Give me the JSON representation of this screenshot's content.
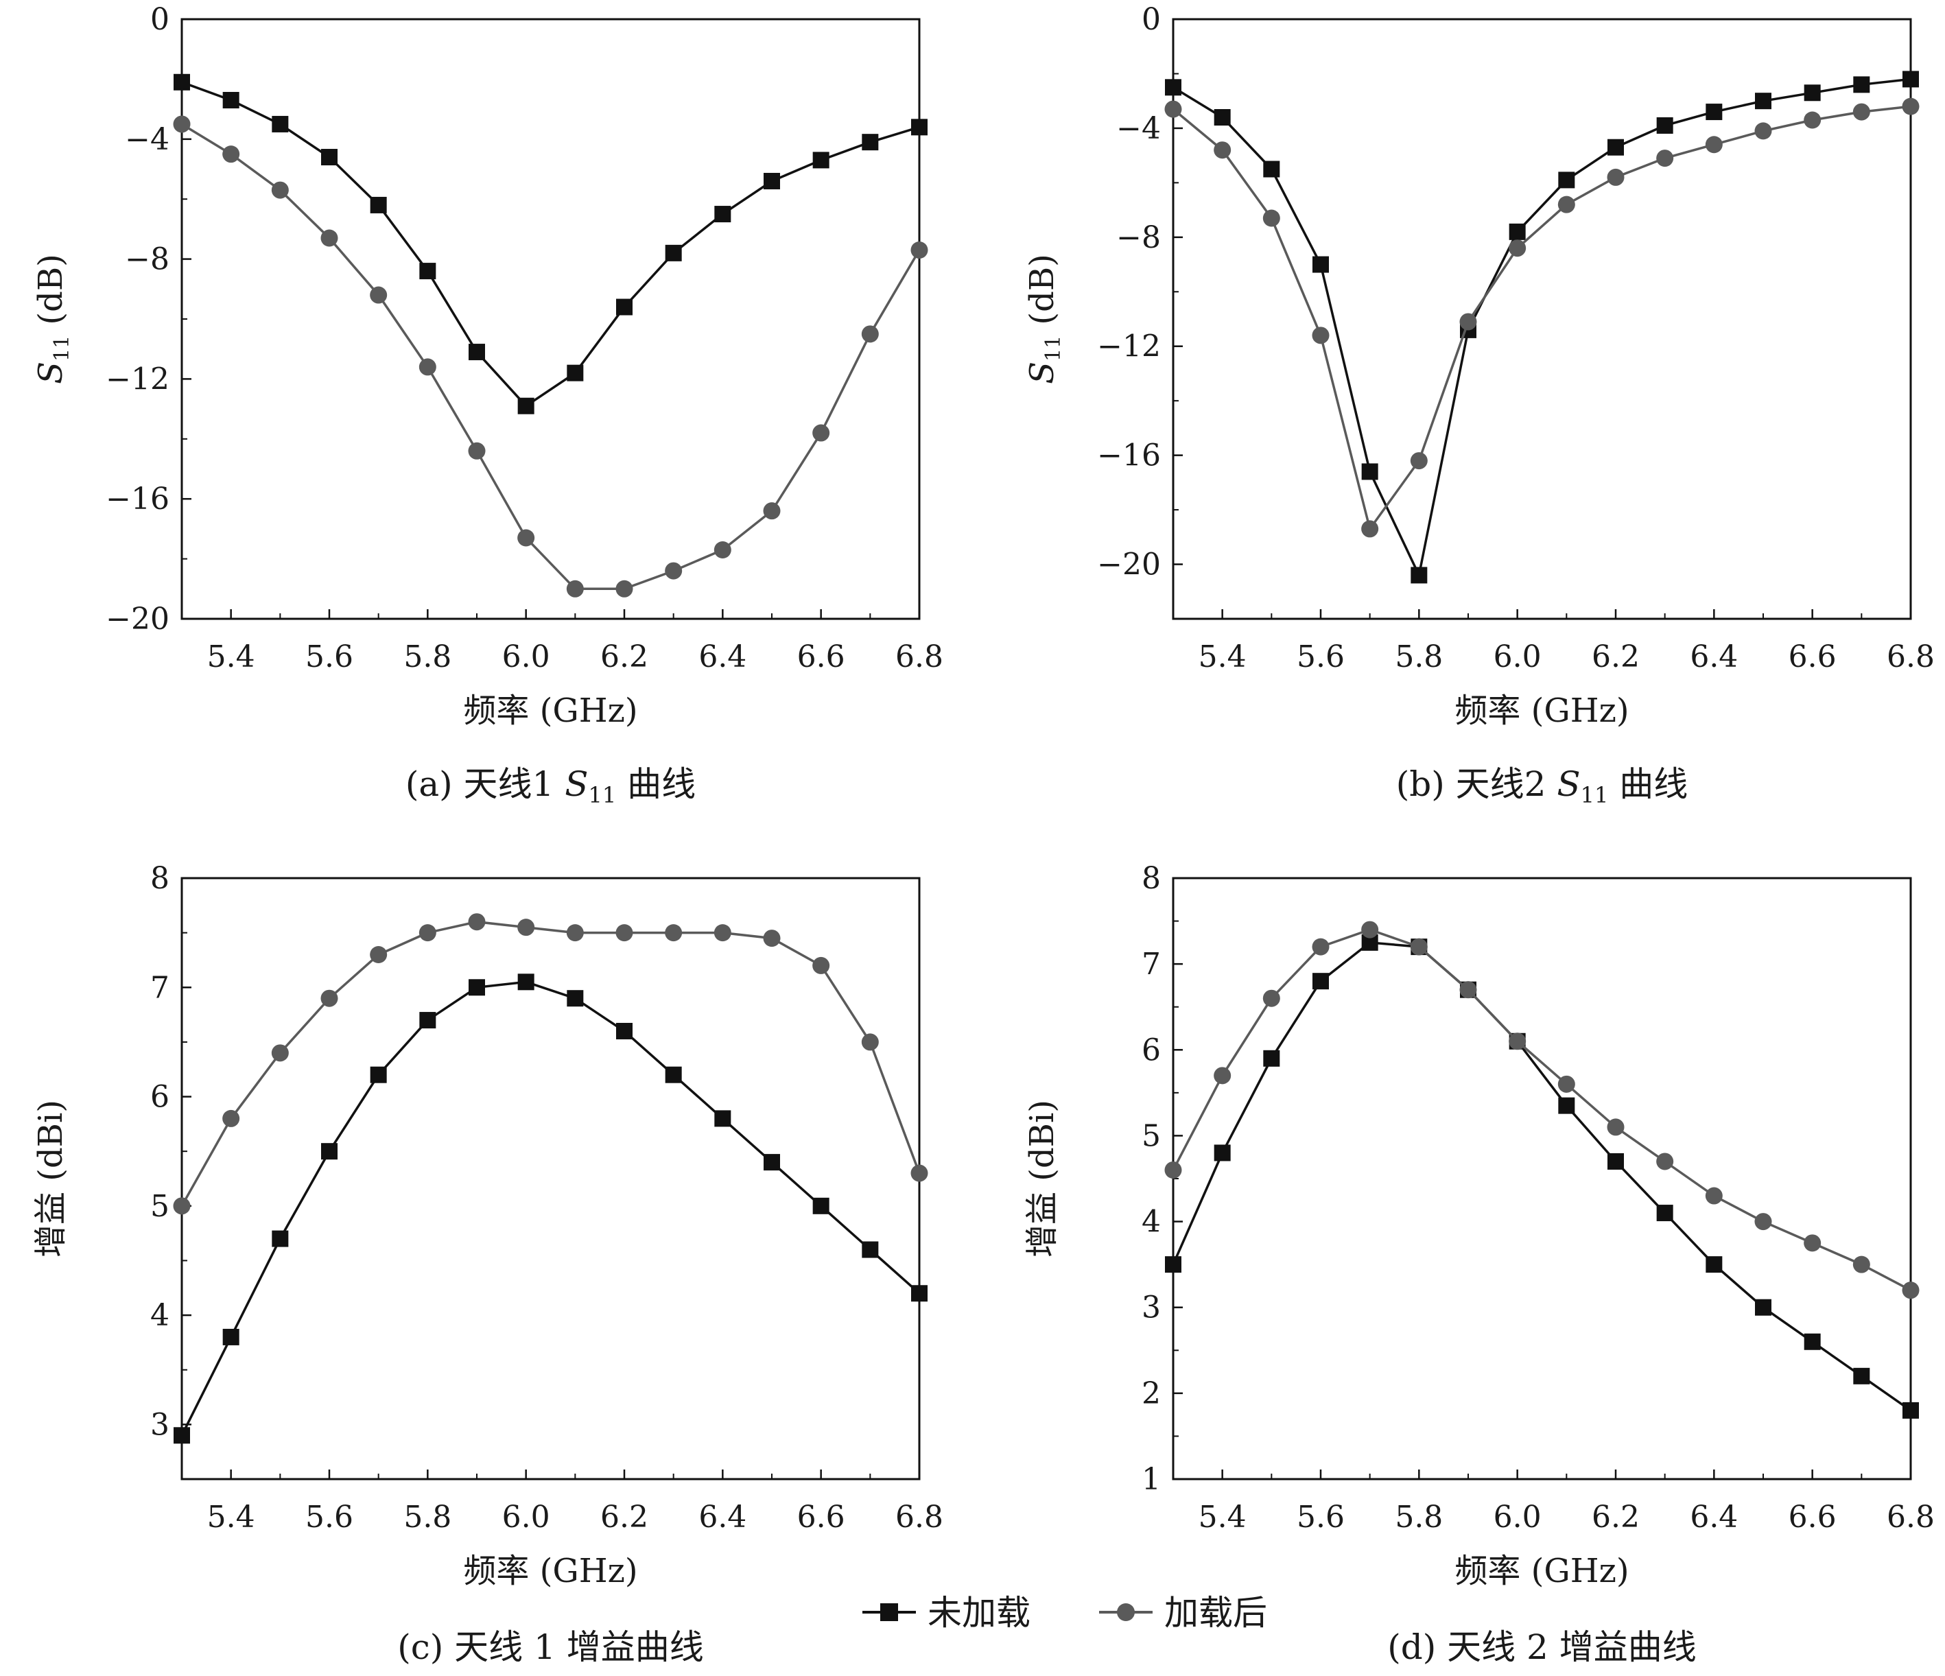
{
  "legend": {
    "series": [
      {
        "name": "未加载",
        "color": "#111111",
        "marker": "square"
      },
      {
        "name": "加载后",
        "color": "#5a5a5a",
        "marker": "circle"
      }
    ]
  },
  "chart_data": [
    {
      "id": "a",
      "type": "line",
      "caption": {
        "prefix": "(a) 天线1 ",
        "var": "S",
        "sub": "11",
        "suffix": " 曲线"
      },
      "xlabel": "频率 (GHz)",
      "ylabel": {
        "var": "S",
        "sub": "11",
        "unit": " (dB)"
      },
      "xlim": [
        5.3,
        6.8
      ],
      "ylim": [
        -20,
        0
      ],
      "xticks": [
        5.4,
        5.6,
        5.8,
        6.0,
        6.2,
        6.4,
        6.6,
        6.8
      ],
      "xtick_labels": [
        "5.4",
        "5.6",
        "5.8",
        "6.0",
        "6.2",
        "6.4",
        "6.6",
        "6.8"
      ],
      "yticks": [
        0,
        -4,
        -8,
        -12,
        -16,
        -20
      ],
      "ytick_labels": [
        "0",
        "−4",
        "−8",
        "−12",
        "−16",
        "−20"
      ],
      "x": [
        5.3,
        5.4,
        5.5,
        5.6,
        5.7,
        5.8,
        5.9,
        6.0,
        6.1,
        6.2,
        6.3,
        6.4,
        6.5,
        6.6,
        6.7,
        6.8
      ],
      "series": [
        {
          "name": "未加载",
          "values": [
            -2.1,
            -2.7,
            -3.5,
            -4.6,
            -6.2,
            -8.4,
            -11.1,
            -12.9,
            -11.8,
            -9.6,
            -7.8,
            -6.5,
            -5.4,
            -4.7,
            -4.1,
            -3.6
          ]
        },
        {
          "name": "加载后",
          "values": [
            -3.5,
            -4.5,
            -5.7,
            -7.3,
            -9.2,
            -11.6,
            -14.4,
            -17.3,
            -19.0,
            -19.0,
            -18.4,
            -17.7,
            -16.4,
            -13.8,
            -10.5,
            -7.7
          ]
        }
      ]
    },
    {
      "id": "b",
      "type": "line",
      "caption": {
        "prefix": "(b) 天线2 ",
        "var": "S",
        "sub": "11",
        "suffix": " 曲线"
      },
      "xlabel": "频率 (GHz)",
      "ylabel": {
        "var": "S",
        "sub": "11",
        "unit": " (dB)"
      },
      "xlim": [
        5.3,
        6.8
      ],
      "ylim": [
        -22,
        0
      ],
      "xticks": [
        5.4,
        5.6,
        5.8,
        6.0,
        6.2,
        6.4,
        6.6,
        6.8
      ],
      "xtick_labels": [
        "5.4",
        "5.6",
        "5.8",
        "6.0",
        "6.2",
        "6.4",
        "6.6",
        "6.8"
      ],
      "yticks": [
        0,
        -4,
        -8,
        -12,
        -16,
        -20
      ],
      "ytick_labels": [
        "0",
        "−4",
        "−8",
        "−12",
        "−16",
        "−20"
      ],
      "x": [
        5.3,
        5.4,
        5.5,
        5.6,
        5.7,
        5.8,
        5.9,
        6.0,
        6.1,
        6.2,
        6.3,
        6.4,
        6.5,
        6.6,
        6.7,
        6.8
      ],
      "series": [
        {
          "name": "未加载",
          "values": [
            -2.5,
            -3.6,
            -5.5,
            -9.0,
            -16.6,
            -20.4,
            -11.4,
            -7.8,
            -5.9,
            -4.7,
            -3.9,
            -3.4,
            -3.0,
            -2.7,
            -2.4,
            -2.2
          ]
        },
        {
          "name": "加载后",
          "values": [
            -3.3,
            -4.8,
            -7.3,
            -11.6,
            -18.7,
            -16.2,
            -11.1,
            -8.4,
            -6.8,
            -5.8,
            -5.1,
            -4.6,
            -4.1,
            -3.7,
            -3.4,
            -3.2
          ]
        }
      ]
    },
    {
      "id": "c",
      "type": "line",
      "caption": {
        "prefix": "(c) 天线 1 增益曲线",
        "var": "",
        "sub": "",
        "suffix": ""
      },
      "xlabel": "频率 (GHz)",
      "ylabel": {
        "var": "",
        "sub": "",
        "unit": "增益 (dBi)"
      },
      "xlim": [
        5.3,
        6.8
      ],
      "ylim": [
        2.5,
        8
      ],
      "xticks": [
        5.4,
        5.6,
        5.8,
        6.0,
        6.2,
        6.4,
        6.6,
        6.8
      ],
      "xtick_labels": [
        "5.4",
        "5.6",
        "5.8",
        "6.0",
        "6.2",
        "6.4",
        "6.6",
        "6.8"
      ],
      "yticks": [
        3,
        4,
        5,
        6,
        7,
        8
      ],
      "ytick_labels": [
        "3",
        "4",
        "5",
        "6",
        "7",
        "8"
      ],
      "x": [
        5.3,
        5.4,
        5.5,
        5.6,
        5.7,
        5.8,
        5.9,
        6.0,
        6.1,
        6.2,
        6.3,
        6.4,
        6.5,
        6.6,
        6.7,
        6.8
      ],
      "series": [
        {
          "name": "未加载",
          "values": [
            2.9,
            3.8,
            4.7,
            5.5,
            6.2,
            6.7,
            7.0,
            7.05,
            6.9,
            6.6,
            6.2,
            5.8,
            5.4,
            5.0,
            4.6,
            4.2
          ]
        },
        {
          "name": "加载后",
          "values": [
            5.0,
            5.8,
            6.4,
            6.9,
            7.3,
            7.5,
            7.6,
            7.55,
            7.5,
            7.5,
            7.5,
            7.5,
            7.45,
            7.2,
            6.5,
            5.3
          ]
        }
      ]
    },
    {
      "id": "d",
      "type": "line",
      "caption": {
        "prefix": "(d) 天线 2 增益曲线",
        "var": "",
        "sub": "",
        "suffix": ""
      },
      "xlabel": "频率 (GHz)",
      "ylabel": {
        "var": "",
        "sub": "",
        "unit": "增益 (dBi)"
      },
      "xlim": [
        5.3,
        6.8
      ],
      "ylim": [
        1,
        8
      ],
      "xticks": [
        5.4,
        5.6,
        5.8,
        6.0,
        6.2,
        6.4,
        6.6,
        6.8
      ],
      "xtick_labels": [
        "5.4",
        "5.6",
        "5.8",
        "6.0",
        "6.2",
        "6.4",
        "6.6",
        "6.8"
      ],
      "yticks": [
        1,
        2,
        3,
        4,
        5,
        6,
        7,
        8
      ],
      "ytick_labels": [
        "1",
        "2",
        "3",
        "4",
        "5",
        "6",
        "7",
        "8"
      ],
      "x": [
        5.3,
        5.4,
        5.5,
        5.6,
        5.7,
        5.8,
        5.9,
        6.0,
        6.1,
        6.2,
        6.3,
        6.4,
        6.5,
        6.6,
        6.7,
        6.8
      ],
      "series": [
        {
          "name": "未加载",
          "values": [
            3.5,
            4.8,
            5.9,
            6.8,
            7.25,
            7.2,
            6.7,
            6.1,
            5.35,
            4.7,
            4.1,
            3.5,
            3.0,
            2.6,
            2.2,
            1.8
          ]
        },
        {
          "name": "加载后",
          "values": [
            4.6,
            5.7,
            6.6,
            7.2,
            7.4,
            7.2,
            6.7,
            6.1,
            5.6,
            5.1,
            4.7,
            4.3,
            4.0,
            3.75,
            3.5,
            3.2
          ]
        }
      ]
    }
  ]
}
